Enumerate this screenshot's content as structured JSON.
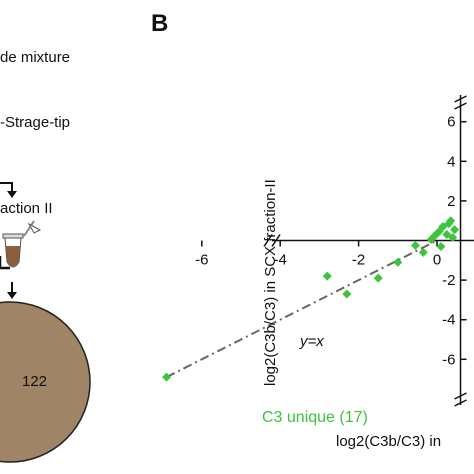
{
  "panel_b_letter": "B",
  "left_panel": {
    "step1": "de mixture",
    "step2": "-Strage-tip",
    "fraction": "action II",
    "venn_value": "122"
  },
  "chart_data": {
    "type": "scatter",
    "xlabel": "log2(C3b/C3) in",
    "ylabel": "log2(C3b/C3) in SCX fraction-II",
    "xlim": [
      -7,
      0.5
    ],
    "ylim": [
      -7.5,
      7
    ],
    "x_ticks": [
      "-6",
      "-4",
      "-2",
      "0"
    ],
    "y_ticks": [
      "6",
      "4",
      "2",
      "-2",
      "-4",
      "-6"
    ],
    "x_tick_values": [
      -6,
      -4,
      -2,
      0
    ],
    "y_tick_values": [
      6,
      4,
      2,
      -2,
      -4,
      -6
    ],
    "line_label": "y=x",
    "series": [
      {
        "name": "C3 unique (17)",
        "color": "#3cc43c",
        "points": [
          {
            "x": -6.9,
            "y": -6.9
          },
          {
            "x": -2.8,
            "y": -1.8
          },
          {
            "x": -2.3,
            "y": -2.7
          },
          {
            "x": -1.5,
            "y": -1.9
          },
          {
            "x": -1.0,
            "y": -1.1
          },
          {
            "x": -0.55,
            "y": -0.25
          },
          {
            "x": -0.35,
            "y": -0.6
          },
          {
            "x": -0.15,
            "y": 0.05
          },
          {
            "x": 0.05,
            "y": 0.45
          },
          {
            "x": 0.15,
            "y": 0.7
          },
          {
            "x": 0.25,
            "y": 0.3
          },
          {
            "x": 0.3,
            "y": 0.85
          },
          {
            "x": 0.4,
            "y": 0.15
          },
          {
            "x": 0.45,
            "y": 0.55
          },
          {
            "x": 0.1,
            "y": -0.3
          },
          {
            "x": 0.35,
            "y": 1.0
          },
          {
            "x": -0.05,
            "y": 0.25
          }
        ]
      }
    ],
    "line_color": "#666666"
  }
}
